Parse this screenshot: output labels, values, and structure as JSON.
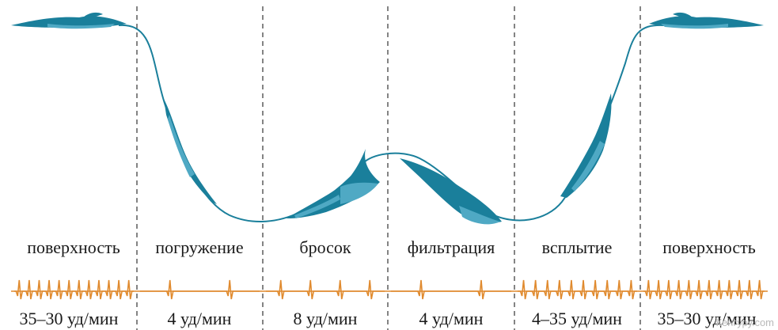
{
  "phases": [
    {
      "label": "поверхность",
      "rate": "35–30 уд/мин",
      "beats": 12
    },
    {
      "label": "погружение",
      "rate": "4 уд/мин",
      "beats": 2
    },
    {
      "label": "бросок",
      "rate": "8 уд/мин",
      "beats": 4
    },
    {
      "label": "фильтрация",
      "rate": "4 уд/мин",
      "beats": 2
    },
    {
      "label": "всплытие",
      "rate": "4–35 уд/мин",
      "beats": 10
    },
    {
      "label": "поверхность",
      "rate": "35–30 уд/мин",
      "beats": 12
    }
  ],
  "watermark": "Кенгуру.com",
  "colors": {
    "whale": "#1a7f9b",
    "whale_light": "#4fa9c4",
    "path": "#1a7f9b",
    "heartbeat": "#e08a2e",
    "divider": "#333333",
    "text": "#1a1a1a"
  }
}
